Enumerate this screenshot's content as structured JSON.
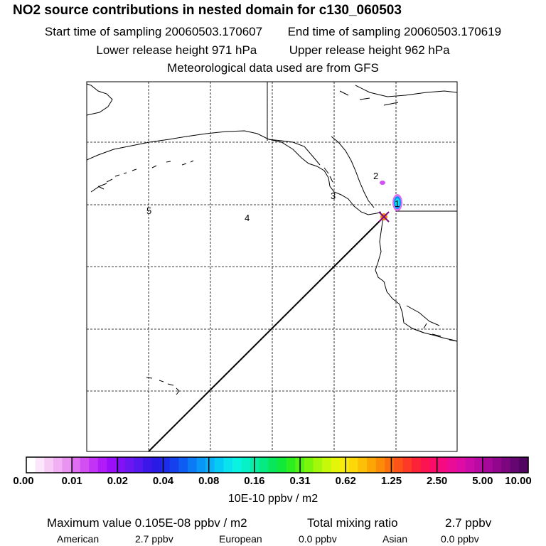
{
  "header": {
    "title": "NO2 source contributions in nested domain for c130_060503",
    "start_label": "Start time of sampling 20060503.170607",
    "end_label": "End time of sampling 20060503.170619",
    "lower_label": "Lower release height  971 hPa",
    "upper_label": "Upper release height  962 hPa",
    "met_label": "Meteorological data used are from GFS"
  },
  "map": {
    "region_labels": [
      "1",
      "2",
      "3",
      "4",
      "5"
    ]
  },
  "colorbar": {
    "ticks": [
      "0.00",
      "0.01",
      "0.02",
      "0.04",
      "0.08",
      "0.16",
      "0.31",
      "0.62",
      "1.25",
      "2.50",
      "5.00",
      "10.00"
    ],
    "colors": [
      "#ffffff",
      "#fbe6fb",
      "#f6ccf7",
      "#f0b0f3",
      "#e994f0",
      "#df6ef0",
      "#d24ff2",
      "#c233f5",
      "#b01bf7",
      "#9a0ff7",
      "#8311f5",
      "#6c16f2",
      "#5518ee",
      "#3c17ea",
      "#2a1ae6",
      "#1d2bea",
      "#1440ee",
      "#0e5df2",
      "#0a7af5",
      "#0896f7",
      "#08b1f8",
      "#08cbf5",
      "#0ae2ef",
      "#0af2e2",
      "#08f0c6",
      "#06eda6",
      "#06ea82",
      "#08e65c",
      "#10e83a",
      "#2cee1e",
      "#52f212",
      "#7af50c",
      "#a2f70a",
      "#c6f80a",
      "#e4f50a",
      "#f8ec0a",
      "#fcd808",
      "#fcc006",
      "#fca606",
      "#fc8c08",
      "#fc700e",
      "#fc5418",
      "#fc3a26",
      "#fc2238",
      "#fc1450",
      "#fc0c68",
      "#f60a82",
      "#ea0c96",
      "#dc0ca4",
      "#cc0ca8",
      "#ba0aa4",
      "#a6089a",
      "#92068e",
      "#7c0680",
      "#660670",
      "#500660"
    ],
    "units": "10E-10 ppbv / m2"
  },
  "stats": {
    "max_label": "Maximum value  0.105E-08 ppbv / m2",
    "total_label": "Total mixing ratio",
    "total_value": "2.7 ppbv"
  },
  "contributions": [
    {
      "name": "American",
      "value": "2.7 ppbv"
    },
    {
      "name": "European",
      "value": "0.0 ppbv"
    },
    {
      "name": "Asian",
      "value": "0.0 ppbv"
    }
  ]
}
